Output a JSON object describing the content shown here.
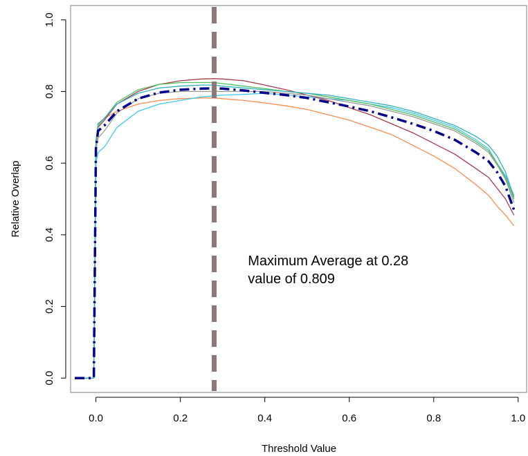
{
  "chart_data": {
    "type": "line",
    "title": "",
    "xlabel": "Threshold Value",
    "ylabel": "Relative Overlap",
    "xlim": [
      -0.06,
      1.02
    ],
    "ylim": [
      -0.04,
      1.04
    ],
    "x_ticks": [
      "0.0",
      "0.2",
      "0.4",
      "0.6",
      "0.8",
      "1.0"
    ],
    "y_ticks": [
      "0.0",
      "0.2",
      "0.4",
      "0.6",
      "0.8",
      "1.0"
    ],
    "grid": false,
    "legend": "none",
    "x": [
      -0.05,
      -0.02,
      -0.005,
      0.0,
      0.005,
      0.02,
      0.05,
      0.1,
      0.15,
      0.2,
      0.25,
      0.28,
      0.3,
      0.35,
      0.4,
      0.45,
      0.5,
      0.55,
      0.6,
      0.65,
      0.7,
      0.75,
      0.8,
      0.85,
      0.9,
      0.93,
      0.95,
      0.97,
      0.99
    ],
    "series": [
      {
        "color": "#ff8c4a",
        "values": [
          0,
          0,
          0,
          0.62,
          0.71,
          0.725,
          0.745,
          0.765,
          0.775,
          0.78,
          0.782,
          0.782,
          0.78,
          0.775,
          0.768,
          0.76,
          0.75,
          0.735,
          0.72,
          0.7,
          0.68,
          0.65,
          0.62,
          0.585,
          0.54,
          0.51,
          0.48,
          0.455,
          0.425
        ]
      },
      {
        "color": "#3ec8f0",
        "values": [
          0,
          0,
          0,
          0.6,
          0.63,
          0.645,
          0.7,
          0.745,
          0.765,
          0.775,
          0.785,
          0.788,
          0.79,
          0.792,
          0.795,
          0.79,
          0.785,
          0.78,
          0.775,
          0.765,
          0.755,
          0.74,
          0.72,
          0.7,
          0.665,
          0.64,
          0.6,
          0.565,
          0.51
        ]
      },
      {
        "color": "#a83a4a",
        "values": [
          0,
          0,
          0,
          0.65,
          0.7,
          0.72,
          0.765,
          0.8,
          0.82,
          0.83,
          0.835,
          0.836,
          0.835,
          0.83,
          0.818,
          0.805,
          0.79,
          0.775,
          0.755,
          0.735,
          0.71,
          0.685,
          0.655,
          0.625,
          0.585,
          0.56,
          0.53,
          0.5,
          0.455
        ]
      },
      {
        "color": "#4cbf5a",
        "values": [
          0,
          0,
          0,
          0.66,
          0.705,
          0.725,
          0.77,
          0.805,
          0.82,
          0.825,
          0.825,
          0.825,
          0.822,
          0.815,
          0.808,
          0.8,
          0.795,
          0.785,
          0.775,
          0.765,
          0.75,
          0.735,
          0.715,
          0.695,
          0.66,
          0.635,
          0.6,
          0.56,
          0.5
        ]
      },
      {
        "color": "#999999",
        "values": [
          0,
          0,
          0,
          0.64,
          0.67,
          0.69,
          0.74,
          0.78,
          0.795,
          0.8,
          0.8,
          0.8,
          0.8,
          0.8,
          0.8,
          0.795,
          0.79,
          0.78,
          0.77,
          0.76,
          0.745,
          0.73,
          0.71,
          0.69,
          0.655,
          0.63,
          0.595,
          0.555,
          0.49
        ]
      },
      {
        "color": "#2fb0c0",
        "values": [
          0,
          0,
          0,
          0.66,
          0.71,
          0.725,
          0.765,
          0.795,
          0.81,
          0.815,
          0.818,
          0.818,
          0.815,
          0.81,
          0.805,
          0.8,
          0.795,
          0.79,
          0.78,
          0.77,
          0.76,
          0.745,
          0.725,
          0.705,
          0.675,
          0.65,
          0.62,
          0.575,
          0.505
        ]
      },
      {
        "color": "#00008b",
        "dash": "dotdash",
        "width": 3.5,
        "values": [
          0,
          0,
          0,
          0.64,
          0.69,
          0.705,
          0.745,
          0.78,
          0.797,
          0.805,
          0.808,
          0.809,
          0.808,
          0.803,
          0.796,
          0.79,
          0.782,
          0.77,
          0.758,
          0.745,
          0.728,
          0.71,
          0.69,
          0.665,
          0.63,
          0.605,
          0.575,
          0.535,
          0.47
        ]
      }
    ],
    "vline": {
      "x": 0.28,
      "color": "#8c7878"
    },
    "annotation": {
      "line1": "Maximum Average at  0.28",
      "line2": "value of  0.809",
      "x": 0.36,
      "y": 0.315
    }
  }
}
